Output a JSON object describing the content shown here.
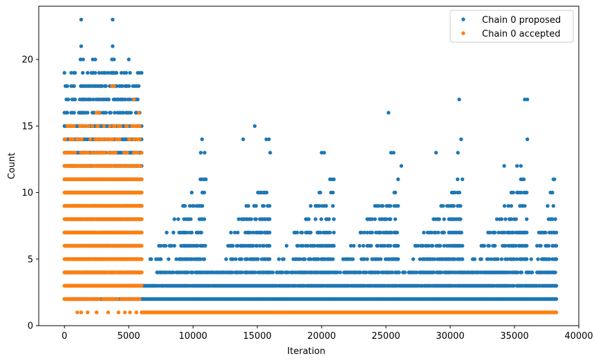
{
  "chart_data": {
    "type": "scatter",
    "title": "",
    "xlabel": "Iteration",
    "ylabel": "Count",
    "xlim": [
      -2000,
      40000
    ],
    "ylim": [
      0,
      24
    ],
    "xticks": [
      0,
      5000,
      10000,
      15000,
      20000,
      25000,
      30000,
      35000,
      40000
    ],
    "xtick_labels": [
      "0",
      "5000",
      "10000",
      "15000",
      "20000",
      "25000",
      "30000",
      "35000",
      "40000"
    ],
    "yticks": [
      0,
      5,
      10,
      15,
      20
    ],
    "ytick_labels": [
      "0",
      "5",
      "10",
      "15",
      "20"
    ],
    "grid": false,
    "legend_position": "top-right",
    "series": [
      {
        "name": "Chain 0 proposed",
        "color": "#1f77b4",
        "bands": [
          {
            "x_start": 0,
            "x_end": 6000,
            "y_min": 2,
            "y_max": 15,
            "density": 0.9
          },
          {
            "x_start": 0,
            "x_end": 6000,
            "y_min": 16,
            "y_max": 19,
            "density": 0.45
          },
          {
            "x_start": 6000,
            "x_end": 38300,
            "y_min": 2,
            "y_max": 2,
            "density": 1.0
          },
          {
            "x_start": 6000,
            "x_end": 38300,
            "y_min": 3,
            "y_max": 3,
            "density": 0.95
          },
          {
            "x_start": 7200,
            "x_end": 38300,
            "y_min": 4,
            "y_max": 4,
            "density": 0.8
          }
        ],
        "groups": [
          {
            "start": 6000,
            "end": 11000
          },
          {
            "start": 11000,
            "end": 16000
          },
          {
            "start": 16000,
            "end": 21000
          },
          {
            "start": 21000,
            "end": 26000
          },
          {
            "start": 26000,
            "end": 31000
          },
          {
            "start": 31000,
            "end": 36000
          },
          {
            "start": 36000,
            "end": 38300
          }
        ],
        "outliers": [
          {
            "x": 1300,
            "y": 23
          },
          {
            "x": 3750,
            "y": 23
          },
          {
            "x": 1300,
            "y": 21
          },
          {
            "x": 3750,
            "y": 21
          },
          {
            "x": 1250,
            "y": 20
          },
          {
            "x": 1450,
            "y": 20
          },
          {
            "x": 2200,
            "y": 20
          },
          {
            "x": 2400,
            "y": 20
          },
          {
            "x": 3700,
            "y": 20
          },
          {
            "x": 3850,
            "y": 20
          },
          {
            "x": 5000,
            "y": 20
          },
          {
            "x": 10700,
            "y": 14
          },
          {
            "x": 10900,
            "y": 13
          },
          {
            "x": 10600,
            "y": 13
          },
          {
            "x": 11000,
            "y": 11
          },
          {
            "x": 13900,
            "y": 14
          },
          {
            "x": 14800,
            "y": 15
          },
          {
            "x": 15700,
            "y": 14
          },
          {
            "x": 15900,
            "y": 14
          },
          {
            "x": 16000,
            "y": 13
          },
          {
            "x": 20000,
            "y": 13
          },
          {
            "x": 20200,
            "y": 13
          },
          {
            "x": 25200,
            "y": 16
          },
          {
            "x": 25400,
            "y": 13
          },
          {
            "x": 25600,
            "y": 13
          },
          {
            "x": 26200,
            "y": 12
          },
          {
            "x": 28900,
            "y": 13
          },
          {
            "x": 30600,
            "y": 13
          },
          {
            "x": 30700,
            "y": 17
          },
          {
            "x": 30850,
            "y": 14
          },
          {
            "x": 34200,
            "y": 12
          },
          {
            "x": 35200,
            "y": 12
          },
          {
            "x": 35500,
            "y": 12
          },
          {
            "x": 35800,
            "y": 17
          },
          {
            "x": 36000,
            "y": 17
          },
          {
            "x": 36000,
            "y": 14
          },
          {
            "x": 38000,
            "y": 6
          },
          {
            "x": 37500,
            "y": 4
          },
          {
            "x": 37600,
            "y": 4
          }
        ]
      },
      {
        "name": "Chain 0 accepted",
        "color": "#ff7f0e",
        "bands": [
          {
            "x_start": 0,
            "x_end": 6000,
            "y_min": 3,
            "y_max": 11,
            "density": 1.0
          },
          {
            "x_start": 0,
            "x_end": 6000,
            "y_min": 12,
            "y_max": 12,
            "density": 0.75
          },
          {
            "x_start": 0,
            "x_end": 6000,
            "y_min": 13,
            "y_max": 15,
            "density": 0.35
          },
          {
            "x_start": 0,
            "x_end": 6000,
            "y_min": 2,
            "y_max": 2,
            "density": 0.6
          },
          {
            "x_start": 6000,
            "x_end": 38300,
            "y_min": 1,
            "y_max": 1,
            "density": 1.0
          }
        ],
        "outliers": [
          {
            "x": 3700,
            "y": 18
          },
          {
            "x": 3850,
            "y": 18
          },
          {
            "x": 2500,
            "y": 16
          },
          {
            "x": 2700,
            "y": 16
          },
          {
            "x": 5400,
            "y": 17
          },
          {
            "x": 5800,
            "y": 16
          },
          {
            "x": 1000,
            "y": 1
          },
          {
            "x": 1300,
            "y": 1
          },
          {
            "x": 1800,
            "y": 1
          },
          {
            "x": 2500,
            "y": 1
          },
          {
            "x": 3400,
            "y": 1
          },
          {
            "x": 4200,
            "y": 1
          },
          {
            "x": 4700,
            "y": 1
          },
          {
            "x": 5100,
            "y": 1
          },
          {
            "x": 5600,
            "y": 1
          }
        ]
      }
    ]
  }
}
